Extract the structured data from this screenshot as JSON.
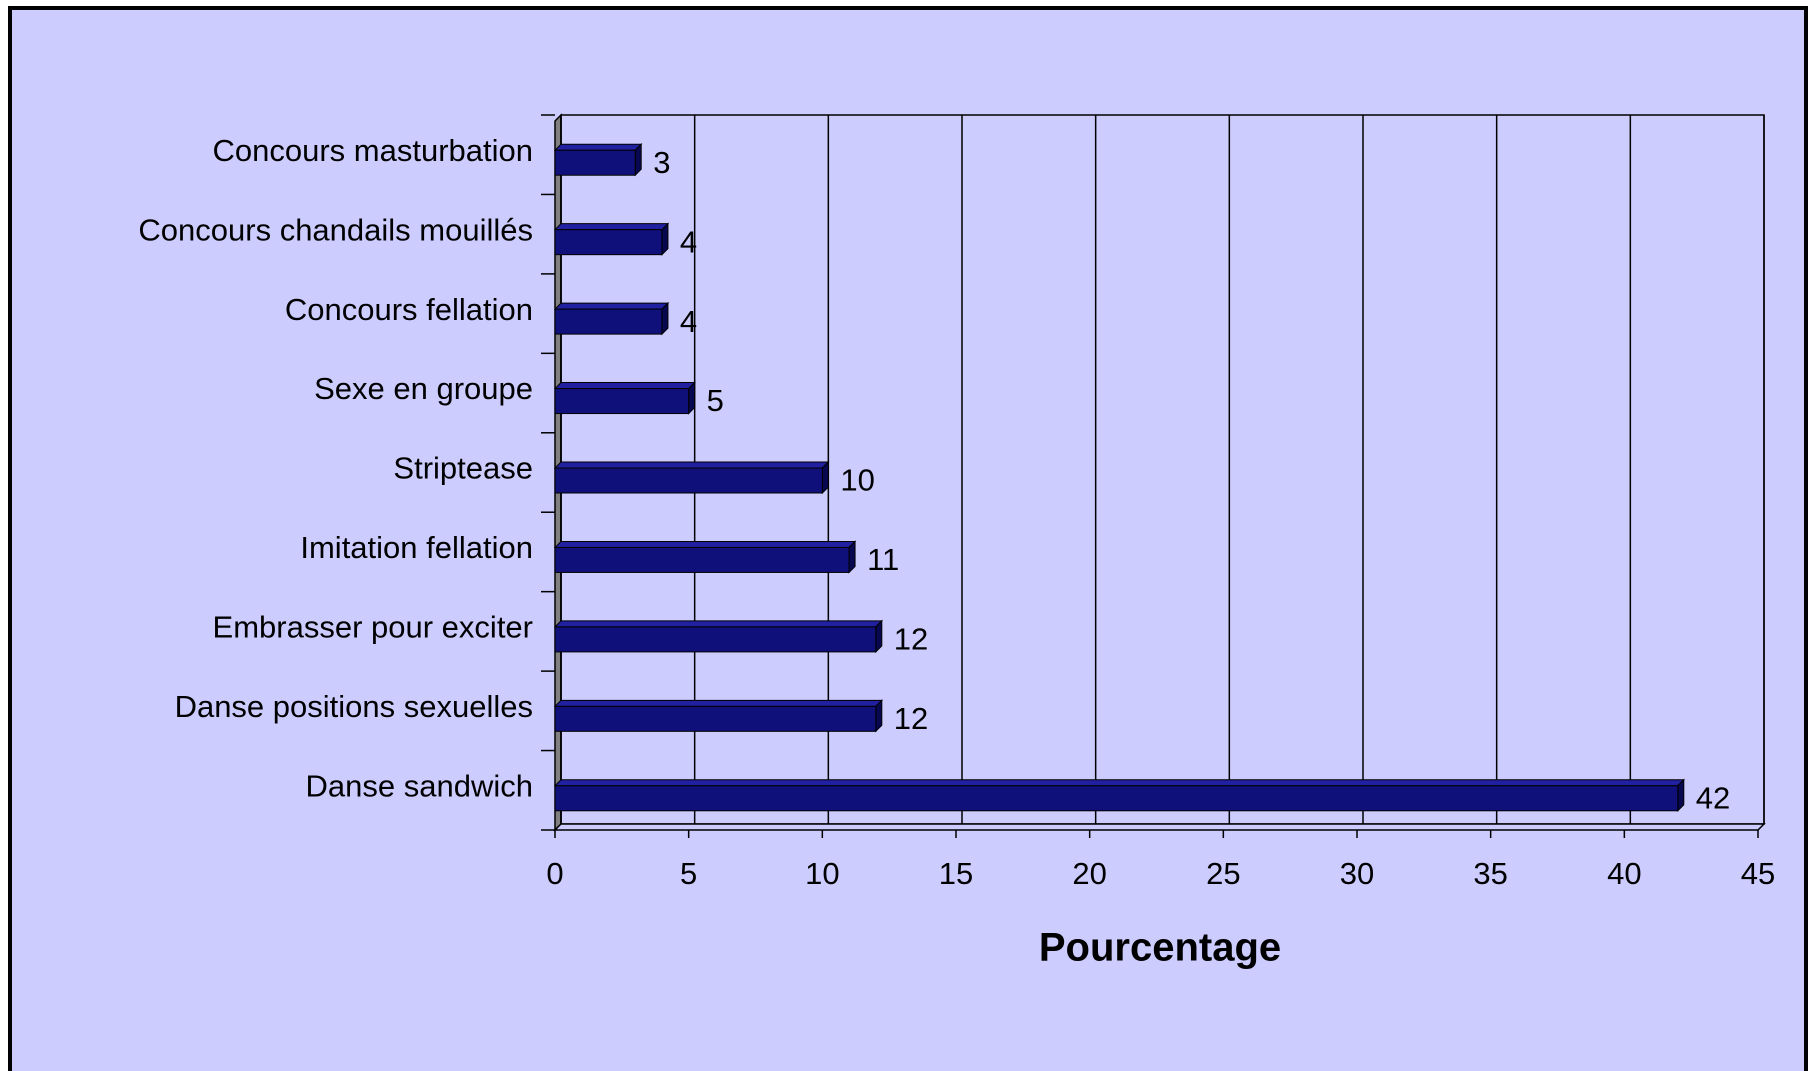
{
  "chart_data": {
    "type": "bar",
    "orientation": "horizontal",
    "categories": [
      "Concours masturbation",
      "Concours chandails mouillés",
      "Concours fellation",
      "Sexe en groupe",
      "Striptease",
      "Imitation fellation",
      "Embrasser pour exciter",
      "Danse positions sexuelles",
      "Danse sandwich"
    ],
    "values": [
      3,
      4,
      4,
      5,
      10,
      11,
      12,
      12,
      42
    ],
    "color": "#10107a",
    "xlabel": "Pourcentage",
    "xlim": [
      0,
      45
    ],
    "xticks": [
      0,
      5,
      10,
      15,
      20,
      25,
      30,
      35,
      40,
      45
    ],
    "grid": true
  }
}
